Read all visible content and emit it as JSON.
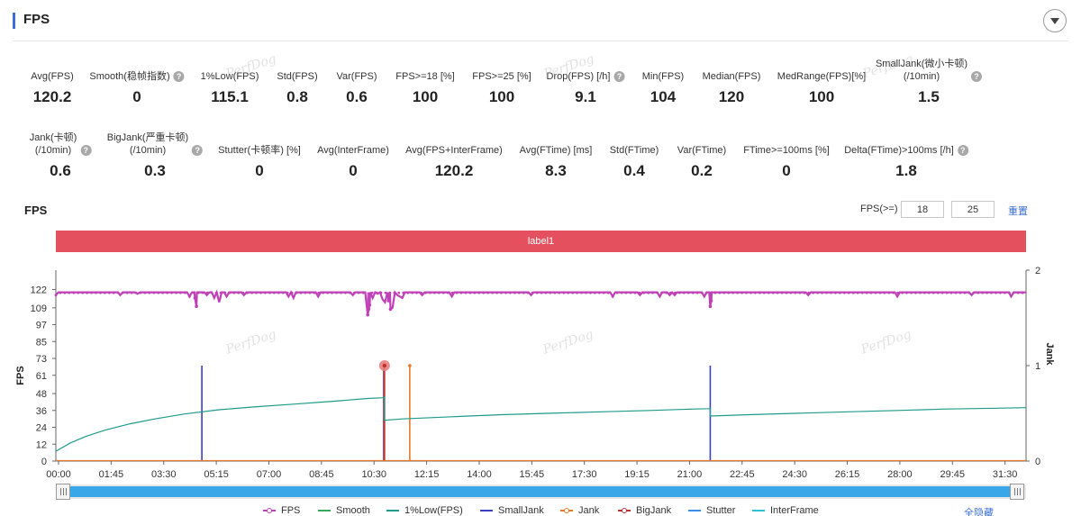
{
  "header": {
    "title": "FPS"
  },
  "metrics_row1": [
    {
      "label": "Avg(FPS)",
      "value": "120.2",
      "help": false
    },
    {
      "label": "Smooth(稳帧指数)",
      "value": "0",
      "help": true
    },
    {
      "label": "1%Low(FPS)",
      "value": "115.1",
      "help": false
    },
    {
      "label": "Std(FPS)",
      "value": "0.8",
      "help": false
    },
    {
      "label": "Var(FPS)",
      "value": "0.6",
      "help": false
    },
    {
      "label": "FPS>=18 [%]",
      "value": "100",
      "help": false
    },
    {
      "label": "FPS>=25 [%]",
      "value": "100",
      "help": false
    },
    {
      "label": "Drop(FPS) [/h]",
      "value": "9.1",
      "help": true
    },
    {
      "label": "Min(FPS)",
      "value": "104",
      "help": false
    },
    {
      "label": "Median(FPS)",
      "value": "120",
      "help": false
    },
    {
      "label": "MedRange(FPS)[%]",
      "value": "100",
      "help": false
    },
    {
      "label": "SmallJank(微小卡顿)",
      "label2": "(/10min)",
      "value": "1.5",
      "help": true
    }
  ],
  "metrics_row2": [
    {
      "label": "Jank(卡顿)",
      "label2": "(/10min)",
      "value": "0.6",
      "help": true
    },
    {
      "label": "BigJank(严重卡顿)",
      "label2": "(/10min)",
      "value": "0.3",
      "help": true
    },
    {
      "label": "Stutter(卡顿率) [%]",
      "value": "0",
      "help": false
    },
    {
      "label": "Avg(InterFrame)",
      "value": "0",
      "help": false
    },
    {
      "label": "Avg(FPS+InterFrame)",
      "value": "120.2",
      "help": false
    },
    {
      "label": "Avg(FTime) [ms]",
      "value": "8.3",
      "help": false
    },
    {
      "label": "Std(FTime)",
      "value": "0.4",
      "help": false
    },
    {
      "label": "Var(FTime)",
      "value": "0.2",
      "help": false
    },
    {
      "label": "FTime>=100ms [%]",
      "value": "0",
      "help": false
    },
    {
      "label": "Delta(FTime)>100ms [/h]",
      "value": "1.8",
      "help": true
    }
  ],
  "chart_section": {
    "title": "FPS",
    "threshold_label": "FPS(>=)",
    "threshold1": "18",
    "threshold2": "25",
    "reset_label": "重置",
    "band_label": "label1",
    "watermark": "PerfDog",
    "hide_all_label": "全隐藏",
    "help_glyph": "?"
  },
  "chart_data": {
    "type": "line",
    "xlabel": "",
    "ylabel": "FPS",
    "y2label": "Jank",
    "x_ticks": [
      "00:00",
      "01:45",
      "03:30",
      "05:15",
      "07:00",
      "08:45",
      "10:30",
      "12:15",
      "14:00",
      "15:45",
      "17:30",
      "19:15",
      "21:00",
      "22:45",
      "24:30",
      "26:15",
      "28:00",
      "29:45",
      "31:30"
    ],
    "x_range_seconds": [
      0,
      1960
    ],
    "y_ticks": [
      0,
      12,
      24,
      36,
      48,
      61,
      73,
      85,
      97,
      109,
      122
    ],
    "ylim": [
      0,
      130
    ],
    "y2_ticks": [
      0,
      1,
      2
    ],
    "y2lim": [
      0,
      2
    ],
    "series": [
      {
        "name": "FPS",
        "color": "#c040b8",
        "marker": "dot",
        "baseline": 120,
        "dips": [
          [
            0,
            118
          ],
          [
            130,
            118
          ],
          [
            165,
            119
          ],
          [
            270,
            117
          ],
          [
            305,
            118
          ],
          [
            320,
            116
          ],
          [
            330,
            113
          ],
          [
            345,
            117
          ],
          [
            380,
            118
          ],
          [
            470,
            117
          ],
          [
            480,
            116
          ],
          [
            530,
            117
          ],
          [
            600,
            118
          ],
          [
            630,
            117
          ],
          [
            640,
            116
          ],
          [
            650,
            119
          ],
          [
            660,
            115
          ],
          [
            665,
            113
          ],
          [
            680,
            109
          ],
          [
            682,
            117
          ],
          [
            690,
            118
          ],
          [
            695,
            117
          ],
          [
            700,
            116
          ],
          [
            740,
            118
          ],
          [
            800,
            117
          ],
          [
            960,
            118
          ],
          [
            1125,
            117
          ],
          [
            1180,
            118
          ],
          [
            1220,
            117
          ],
          [
            1240,
            118
          ],
          [
            1250,
            118
          ],
          [
            1310,
            117
          ],
          [
            1520,
            118
          ],
          [
            1700,
            117
          ],
          [
            1850,
            118
          ],
          [
            1930,
            117
          ]
        ],
        "deep_dips": [
          [
            281,
            116
          ],
          [
            284,
            110
          ],
          [
            630,
            104
          ],
          [
            632,
            108
          ],
          [
            634,
            111
          ],
          [
            672,
            114
          ],
          [
            676,
            108
          ],
          [
            1322,
            110
          ],
          [
            1324,
            114
          ]
        ]
      },
      {
        "name": "Smooth",
        "color": "#3aa85a",
        "marker": "none"
      },
      {
        "name": "1%Low(FPS)",
        "color": "#1e9a8a",
        "marker": "none",
        "points": [
          [
            0,
            7
          ],
          [
            30,
            13
          ],
          [
            60,
            17.5
          ],
          [
            100,
            22
          ],
          [
            150,
            26.5
          ],
          [
            200,
            30
          ],
          [
            260,
            33.5
          ],
          [
            330,
            36.5
          ],
          [
            400,
            38.5
          ],
          [
            480,
            40.5
          ],
          [
            560,
            42.5
          ],
          [
            630,
            44.5
          ],
          [
            660,
            45
          ],
          [
            664,
            45.5
          ],
          [
            664,
            29
          ],
          [
            700,
            30
          ],
          [
            800,
            31.5
          ],
          [
            900,
            33
          ],
          [
            1000,
            34
          ],
          [
            1100,
            35
          ],
          [
            1200,
            36
          ],
          [
            1290,
            37
          ],
          [
            1320,
            37.3
          ],
          [
            1322,
            37.5
          ],
          [
            1322,
            32
          ],
          [
            1400,
            33
          ],
          [
            1500,
            34
          ],
          [
            1600,
            35
          ],
          [
            1700,
            36
          ],
          [
            1800,
            37
          ],
          [
            1900,
            37.6
          ],
          [
            1960,
            38
          ]
        ]
      },
      {
        "name": "SmallJank",
        "color": "#3a3fc0",
        "marker": "none",
        "spikes": [
          [
            295,
            1
          ],
          [
            662,
            1
          ],
          [
            1322,
            1
          ]
        ]
      },
      {
        "name": "Jank",
        "color": "#e8782a",
        "marker": "dot",
        "spikes": [
          [
            663,
            1
          ],
          [
            715,
            1
          ]
        ]
      },
      {
        "name": "BigJank",
        "color": "#c03030",
        "marker": "dot",
        "spikes": [
          [
            664,
            1
          ]
        ],
        "highlight": [
          664,
          1
        ]
      },
      {
        "name": "Stutter",
        "color": "#3a8de8",
        "marker": "none"
      },
      {
        "name": "InterFrame",
        "color": "#2ec0d0",
        "marker": "none"
      }
    ],
    "grid": false,
    "legend": "bottom"
  }
}
